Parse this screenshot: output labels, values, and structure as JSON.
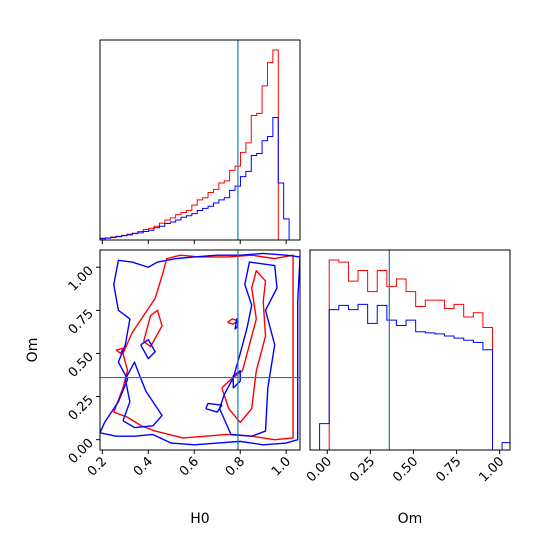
{
  "chart_data": {
    "type": "corner",
    "parameters": [
      "H0",
      "Om"
    ],
    "truth": {
      "H0": 0.79,
      "Om": 0.36
    },
    "series": [
      {
        "color": "#ff0000"
      },
      {
        "color": "#0000ff"
      }
    ],
    "truth_color": "#1f77b4",
    "panels": [
      {
        "kind": "histogram",
        "parameter": "H0",
        "xlim": [
          0.19,
          1.06
        ],
        "bin_edges": [
          0.19,
          0.2135,
          0.237,
          0.2605,
          0.284,
          0.3075,
          0.331,
          0.3545,
          0.378,
          0.4015,
          0.425,
          0.4485,
          0.472,
          0.4955,
          0.519,
          0.5425,
          0.566,
          0.5895,
          0.613,
          0.6365,
          0.66,
          0.6835,
          0.707,
          0.7305,
          0.754,
          0.7775,
          0.801,
          0.8245,
          0.848,
          0.8715,
          0.895,
          0.9185,
          0.942,
          0.9655,
          0.989,
          1.0125,
          1.036,
          1.06
        ],
        "series_values": [
          [
            0.008,
            0.01,
            0.014,
            0.018,
            0.022,
            0.028,
            0.032,
            0.04,
            0.05,
            0.055,
            0.065,
            0.08,
            0.095,
            0.105,
            0.12,
            0.13,
            0.14,
            0.165,
            0.19,
            0.2,
            0.225,
            0.24,
            0.27,
            0.28,
            0.33,
            0.35,
            0.415,
            0.46,
            0.59,
            0.6,
            0.73,
            0.84,
            0.9,
            0.0,
            0.0,
            0.0,
            0.0
          ],
          [
            0.006,
            0.009,
            0.012,
            0.016,
            0.02,
            0.024,
            0.03,
            0.034,
            0.04,
            0.046,
            0.058,
            0.065,
            0.078,
            0.085,
            0.095,
            0.108,
            0.115,
            0.125,
            0.14,
            0.15,
            0.16,
            0.175,
            0.19,
            0.2,
            0.235,
            0.255,
            0.3,
            0.325,
            0.4,
            0.41,
            0.47,
            0.49,
            0.58,
            0.27,
            0.1,
            0.0,
            0.0
          ]
        ]
      },
      {
        "kind": "contour",
        "x_parameter": "H0",
        "y_parameter": "Om",
        "xlim": [
          0.19,
          1.06
        ],
        "ylim": [
          -0.06,
          1.1
        ],
        "x_ticks": [
          "0.2",
          "0.4",
          "0.6",
          "0.8",
          "1.0"
        ],
        "y_ticks": [
          "0.00",
          "0.25",
          "0.50",
          "0.75",
          "1.00"
        ],
        "x_tick_values": [
          0.2,
          0.4,
          0.6,
          0.8,
          1.0
        ],
        "y_tick_values": [
          0.0,
          0.25,
          0.5,
          0.75,
          1.0
        ],
        "xlabel": "H0",
        "ylabel": "Om",
        "contours": [
          {
            "series": 0,
            "points": [
              [
                0.49,
                0.03
              ],
              [
                0.55,
                0.01
              ],
              [
                0.65,
                0.02
              ],
              [
                0.74,
                0.03
              ],
              [
                0.85,
                0.02
              ],
              [
                0.95,
                0.0
              ],
              [
                1.03,
                0.01
              ],
              [
                1.03,
                0.3
              ],
              [
                1.03,
                0.65
              ],
              [
                1.03,
                1.07
              ],
              [
                0.95,
                1.05
              ],
              [
                0.85,
                1.07
              ],
              [
                0.75,
                1.06
              ],
              [
                0.62,
                1.06
              ],
              [
                0.54,
                1.07
              ],
              [
                0.48,
                1.05
              ],
              [
                0.46,
                0.95
              ],
              [
                0.43,
                0.82
              ],
              [
                0.38,
                0.72
              ],
              [
                0.33,
                0.62
              ],
              [
                0.29,
                0.5
              ],
              [
                0.31,
                0.4
              ],
              [
                0.29,
                0.3
              ],
              [
                0.25,
                0.16
              ],
              [
                0.31,
                0.13
              ],
              [
                0.37,
                0.08
              ],
              [
                0.43,
                0.05
              ],
              [
                0.49,
                0.03
              ]
            ]
          },
          {
            "series": 0,
            "points": [
              [
                0.38,
                0.57
              ],
              [
                0.41,
                0.54
              ],
              [
                0.46,
                0.66
              ],
              [
                0.44,
                0.75
              ],
              [
                0.41,
                0.72
              ],
              [
                0.38,
                0.57
              ]
            ]
          },
          {
            "series": 0,
            "points": [
              [
                0.72,
                0.3
              ],
              [
                0.75,
                0.18
              ],
              [
                0.8,
                0.1
              ],
              [
                0.85,
                0.18
              ],
              [
                0.87,
                0.4
              ],
              [
                0.91,
                0.6
              ],
              [
                0.9,
                0.8
              ],
              [
                0.91,
                0.92
              ],
              [
                0.87,
                0.98
              ],
              [
                0.85,
                0.88
              ],
              [
                0.87,
                0.7
              ],
              [
                0.84,
                0.55
              ],
              [
                0.81,
                0.4
              ],
              [
                0.76,
                0.35
              ],
              [
                0.72,
                0.3
              ]
            ]
          },
          {
            "series": 0,
            "points": [
              [
                0.26,
                0.52
              ],
              [
                0.28,
                0.5
              ],
              [
                0.29,
                0.53
              ],
              [
                0.26,
                0.52
              ]
            ]
          },
          {
            "series": 0,
            "points": [
              [
                0.745,
                0.68
              ],
              [
                0.77,
                0.67
              ],
              [
                0.79,
                0.69
              ],
              [
                0.765,
                0.7
              ],
              [
                0.745,
                0.68
              ]
            ]
          },
          {
            "series": 1,
            "points": [
              [
                0.42,
                0.03
              ],
              [
                0.5,
                -0.02
              ],
              [
                0.6,
                -0.03
              ],
              [
                0.7,
                -0.02
              ],
              [
                0.8,
                -0.01
              ],
              [
                0.9,
                -0.03
              ],
              [
                1.0,
                -0.02
              ],
              [
                1.05,
                0.0
              ],
              [
                1.05,
                0.4
              ],
              [
                1.05,
                0.8
              ],
              [
                1.06,
                1.06
              ],
              [
                1.0,
                1.07
              ],
              [
                0.9,
                1.08
              ],
              [
                0.8,
                1.07
              ],
              [
                0.7,
                1.07
              ],
              [
                0.6,
                1.06
              ],
              [
                0.52,
                1.05
              ],
              [
                0.44,
                1.03
              ],
              [
                0.4,
                1.0
              ],
              [
                0.33,
                1.03
              ],
              [
                0.27,
                1.04
              ],
              [
                0.25,
                0.9
              ],
              [
                0.27,
                0.75
              ],
              [
                0.32,
                0.7
              ],
              [
                0.3,
                0.55
              ],
              [
                0.27,
                0.45
              ],
              [
                0.31,
                0.35
              ],
              [
                0.27,
                0.22
              ],
              [
                0.21,
                0.1
              ],
              [
                0.19,
                0.04
              ],
              [
                0.26,
                0.02
              ],
              [
                0.34,
                0.02
              ],
              [
                0.42,
                0.03
              ]
            ]
          },
          {
            "series": 1,
            "points": [
              [
                0.29,
                0.11
              ],
              [
                0.34,
                0.07
              ],
              [
                0.42,
                0.08
              ],
              [
                0.46,
                0.14
              ],
              [
                0.43,
                0.2
              ],
              [
                0.39,
                0.28
              ],
              [
                0.36,
                0.38
              ],
              [
                0.34,
                0.45
              ],
              [
                0.3,
                0.35
              ],
              [
                0.32,
                0.22
              ],
              [
                0.29,
                0.11
              ]
            ]
          },
          {
            "series": 1,
            "points": [
              [
                0.71,
                0.18
              ],
              [
                0.76,
                0.03
              ],
              [
                0.85,
                0.02
              ],
              [
                0.91,
                0.05
              ],
              [
                0.92,
                0.3
              ],
              [
                0.95,
                0.55
              ],
              [
                0.91,
                0.75
              ],
              [
                0.96,
                0.88
              ],
              [
                0.95,
                1.01
              ],
              [
                0.84,
                1.03
              ],
              [
                0.82,
                0.9
              ],
              [
                0.85,
                0.78
              ],
              [
                0.83,
                0.65
              ],
              [
                0.8,
                0.5
              ],
              [
                0.77,
                0.36
              ],
              [
                0.73,
                0.26
              ],
              [
                0.71,
                0.18
              ]
            ]
          },
          {
            "series": 1,
            "points": [
              [
                0.367,
                0.55
              ],
              [
                0.4,
                0.58
              ],
              [
                0.43,
                0.51
              ],
              [
                0.4,
                0.47
              ],
              [
                0.367,
                0.55
              ]
            ]
          },
          {
            "series": 1,
            "points": [
              [
                0.777,
                0.64
              ],
              [
                0.79,
                0.66
              ],
              [
                0.785,
                0.7
              ],
              [
                0.777,
                0.64
              ]
            ]
          },
          {
            "series": 1,
            "points": [
              [
                0.769,
                0.37
              ],
              [
                0.8,
                0.4
              ],
              [
                0.8,
                0.34
              ],
              [
                0.77,
                0.3
              ],
              [
                0.769,
                0.37
              ]
            ]
          },
          {
            "series": 1,
            "points": [
              [
                0.65,
                0.18
              ],
              [
                0.7,
                0.16
              ],
              [
                0.72,
                0.2
              ],
              [
                0.66,
                0.21
              ],
              [
                0.65,
                0.18
              ]
            ]
          }
        ]
      },
      {
        "kind": "histogram",
        "parameter": "Om",
        "xlim": [
          -0.1,
          1.06
        ],
        "x_ticks": [
          "0.00",
          "0.25",
          "0.50",
          "0.75",
          "1.00"
        ],
        "x_tick_values": [
          0.0,
          0.25,
          0.5,
          0.75,
          1.0
        ],
        "xlabel": "Om",
        "bin_edges": [
          -0.1,
          -0.0443,
          0.0114,
          0.0671,
          0.1229,
          0.1786,
          0.2343,
          0.29,
          0.3457,
          0.4014,
          0.4571,
          0.5129,
          0.5686,
          0.6243,
          0.68,
          0.7357,
          0.7914,
          0.8471,
          0.9029,
          0.9586,
          1.0143,
          1.06
        ],
        "series_values": [
          [
            0.0,
            0.0,
            1.8,
            1.78,
            1.6,
            1.7,
            1.5,
            1.7,
            1.55,
            1.62,
            1.5,
            1.36,
            1.42,
            1.42,
            1.34,
            1.38,
            1.26,
            1.3,
            1.16,
            0.0,
            0.0
          ],
          [
            0.0,
            0.25,
            1.33,
            1.37,
            1.33,
            1.38,
            1.2,
            1.37,
            1.23,
            1.18,
            1.23,
            1.12,
            1.11,
            1.1,
            1.08,
            1.06,
            1.04,
            1.02,
            0.95,
            0.0,
            0.07
          ]
        ]
      }
    ]
  }
}
